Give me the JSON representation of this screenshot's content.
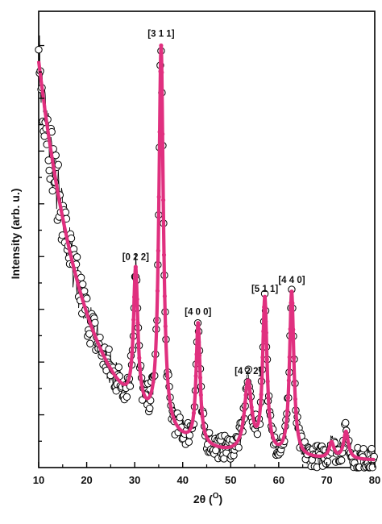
{
  "chart_data": {
    "type": "line",
    "title": "",
    "xlabel": "2θ (",
    "xlabel_sup": "O",
    "xlabel_close": ")",
    "ylabel": "Intensity (arb. u.)",
    "xlim": [
      10,
      80
    ],
    "ylim": [
      0,
      1
    ],
    "x_ticks": [
      10,
      20,
      30,
      40,
      50,
      60,
      70,
      80
    ],
    "x_tick_labels": [
      "10",
      "20",
      "30",
      "40",
      "50",
      "60",
      "70",
      "80"
    ],
    "y_tick_labels_shown": false,
    "colors": {
      "fit": "#e0307f",
      "observed_marker": "#000000"
    },
    "series": [
      {
        "style": "open-circle-markers"
      },
      {
        "style": "solid-line"
      }
    ],
    "peaks": [
      {
        "label": "[0 2 2]",
        "x": 30.2,
        "y": 0.43
      },
      {
        "label": "[3 1 1]",
        "x": 35.5,
        "y": 0.92
      },
      {
        "label": "[4 0 0]",
        "x": 43.2,
        "y": 0.31
      },
      {
        "label": "[4 2 2]",
        "x": 53.6,
        "y": 0.18
      },
      {
        "label": "[5 1 1]",
        "x": 57.1,
        "y": 0.36
      },
      {
        "label": "[4 4 0]",
        "x": 62.7,
        "y": 0.38
      }
    ],
    "background": {
      "x0": 10,
      "y0": 0.89,
      "y_inf": 0.015,
      "decay": 0.1
    },
    "peak_widths": [
      0.55,
      0.55,
      0.5,
      0.9,
      0.55,
      0.55
    ],
    "small_peaks": [
      {
        "x": 71.0,
        "y": 0.035,
        "w": 0.6
      },
      {
        "x": 74.0,
        "y": 0.06,
        "w": 0.6
      },
      {
        "x": 57.0,
        "y": 0.0,
        "w": 0.5
      }
    ]
  }
}
